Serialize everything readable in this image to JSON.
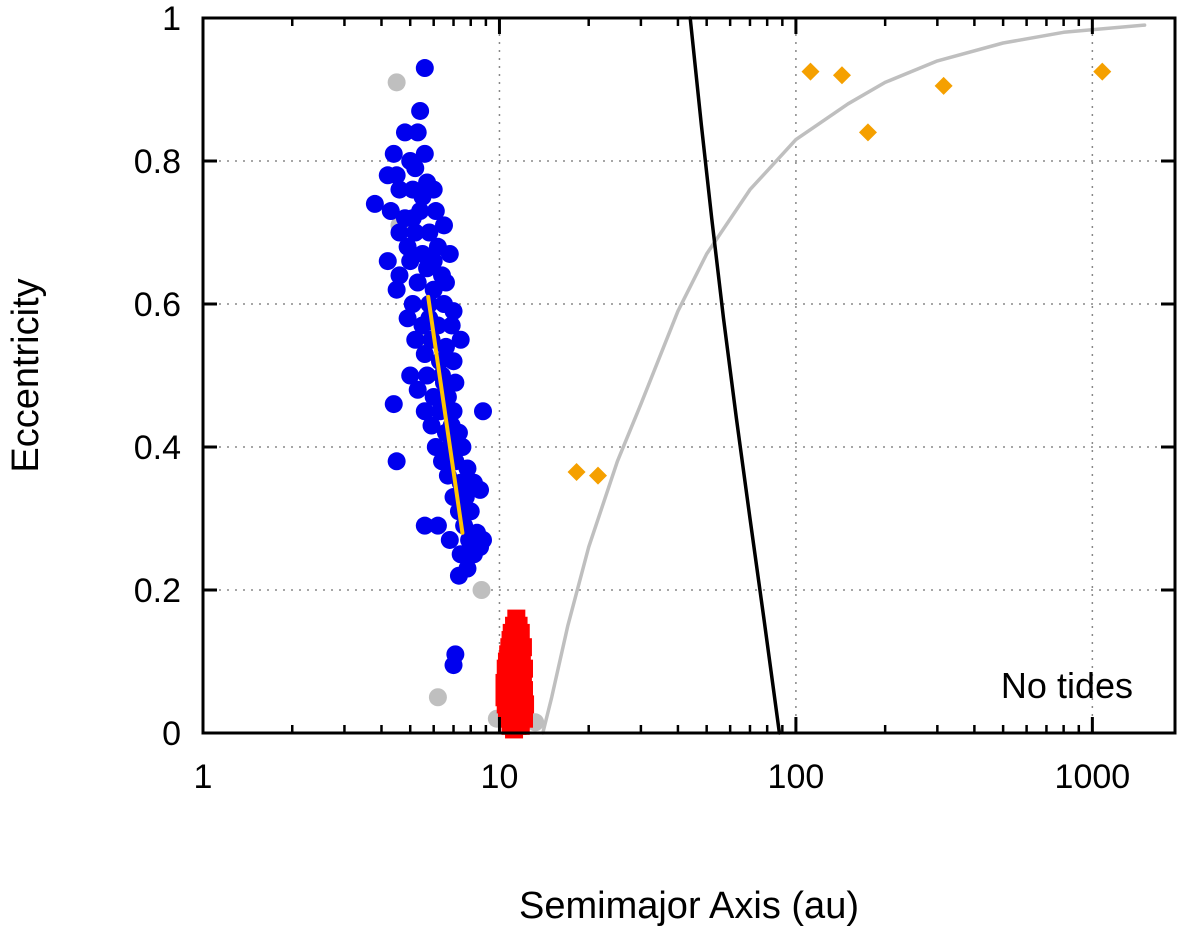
{
  "chart_data": {
    "type": "scatter",
    "title": "",
    "xlabel": "Semimajor Axis (au)",
    "ylabel": "Eccentricity",
    "xscale": "log",
    "xlim": [
      1,
      1900
    ],
    "ylim": [
      0,
      1
    ],
    "xticks": [
      {
        "value": 1,
        "label": "1"
      },
      {
        "value": 10,
        "label": "10"
      },
      {
        "value": 100,
        "label": "100"
      },
      {
        "value": 1000,
        "label": "1000"
      }
    ],
    "yticks": [
      {
        "value": 0,
        "label": "0"
      },
      {
        "value": 0.2,
        "label": "0.2"
      },
      {
        "value": 0.4,
        "label": "0.4"
      },
      {
        "value": 0.6,
        "label": "0.6"
      },
      {
        "value": 0.8,
        "label": "0.8"
      },
      {
        "value": 1,
        "label": "1"
      }
    ],
    "grid": true,
    "annotation": "No tides",
    "colors": {
      "blue": "#0000ee",
      "grey": "#bfbfbf",
      "red": "#ff0000",
      "orange": "#f5a000",
      "yellow": "#ffc400",
      "black": "#000000"
    },
    "series": [
      {
        "name": "grey-points",
        "marker": "circle",
        "color": "#bfbfbf",
        "points": [
          [
            4.5,
            0.91
          ],
          [
            4.6,
            0.71
          ],
          [
            5.3,
            0.55
          ],
          [
            6.2,
            0.05
          ],
          [
            9.8,
            0.02
          ],
          [
            13.2,
            0.015
          ],
          [
            8.7,
            0.2
          ]
        ]
      },
      {
        "name": "blue-points",
        "marker": "circle",
        "color": "#0000ee",
        "points": [
          [
            5.6,
            0.93
          ],
          [
            5.4,
            0.87
          ],
          [
            4.8,
            0.84
          ],
          [
            5.3,
            0.84
          ],
          [
            5.6,
            0.81
          ],
          [
            5.0,
            0.8
          ],
          [
            4.4,
            0.81
          ],
          [
            4.5,
            0.78
          ],
          [
            5.2,
            0.79
          ],
          [
            5.7,
            0.77
          ],
          [
            4.2,
            0.78
          ],
          [
            4.6,
            0.76
          ],
          [
            5.1,
            0.76
          ],
          [
            5.5,
            0.75
          ],
          [
            6.0,
            0.76
          ],
          [
            3.8,
            0.74
          ],
          [
            4.3,
            0.73
          ],
          [
            4.8,
            0.72
          ],
          [
            5.4,
            0.73
          ],
          [
            6.1,
            0.73
          ],
          [
            4.6,
            0.7
          ],
          [
            5.2,
            0.7
          ],
          [
            5.8,
            0.7
          ],
          [
            6.5,
            0.71
          ],
          [
            4.9,
            0.68
          ],
          [
            5.5,
            0.67
          ],
          [
            6.2,
            0.68
          ],
          [
            6.8,
            0.67
          ],
          [
            4.2,
            0.66
          ],
          [
            5.0,
            0.66
          ],
          [
            5.7,
            0.65
          ],
          [
            6.4,
            0.64
          ],
          [
            4.6,
            0.64
          ],
          [
            5.3,
            0.63
          ],
          [
            6.0,
            0.62
          ],
          [
            6.6,
            0.63
          ],
          [
            4.5,
            0.62
          ],
          [
            5.1,
            0.6
          ],
          [
            5.8,
            0.6
          ],
          [
            6.5,
            0.6
          ],
          [
            7.0,
            0.59
          ],
          [
            4.9,
            0.58
          ],
          [
            5.5,
            0.57
          ],
          [
            6.2,
            0.57
          ],
          [
            6.9,
            0.57
          ],
          [
            5.2,
            0.55
          ],
          [
            5.9,
            0.55
          ],
          [
            6.6,
            0.54
          ],
          [
            7.4,
            0.55
          ],
          [
            5.6,
            0.53
          ],
          [
            6.3,
            0.52
          ],
          [
            7.0,
            0.52
          ],
          [
            5.0,
            0.5
          ],
          [
            5.7,
            0.5
          ],
          [
            6.4,
            0.5
          ],
          [
            7.1,
            0.49
          ],
          [
            5.3,
            0.48
          ],
          [
            6.0,
            0.47
          ],
          [
            6.7,
            0.47
          ],
          [
            5.6,
            0.45
          ],
          [
            6.3,
            0.45
          ],
          [
            7.0,
            0.45
          ],
          [
            8.8,
            0.45
          ],
          [
            4.4,
            0.46
          ],
          [
            5.9,
            0.43
          ],
          [
            6.6,
            0.42
          ],
          [
            7.3,
            0.42
          ],
          [
            6.1,
            0.4
          ],
          [
            6.8,
            0.4
          ],
          [
            7.5,
            0.4
          ],
          [
            6.4,
            0.38
          ],
          [
            7.1,
            0.38
          ],
          [
            7.8,
            0.37
          ],
          [
            4.5,
            0.38
          ],
          [
            6.7,
            0.36
          ],
          [
            7.4,
            0.35
          ],
          [
            8.2,
            0.35
          ],
          [
            7.0,
            0.33
          ],
          [
            7.7,
            0.33
          ],
          [
            8.6,
            0.34
          ],
          [
            7.3,
            0.31
          ],
          [
            8.0,
            0.31
          ],
          [
            5.6,
            0.29
          ],
          [
            6.2,
            0.29
          ],
          [
            7.6,
            0.29
          ],
          [
            8.4,
            0.28
          ],
          [
            6.8,
            0.27
          ],
          [
            7.9,
            0.27
          ],
          [
            8.8,
            0.27
          ],
          [
            7.4,
            0.25
          ],
          [
            8.2,
            0.25
          ],
          [
            7.8,
            0.23
          ],
          [
            7.3,
            0.22
          ],
          [
            8.6,
            0.26
          ],
          [
            6.5,
            0.49
          ],
          [
            5.8,
            0.58
          ],
          [
            6.9,
            0.43
          ],
          [
            7.6,
            0.31
          ],
          [
            6.0,
            0.66
          ],
          [
            5.1,
            0.72
          ],
          [
            7.1,
            0.11
          ],
          [
            7.0,
            0.095
          ]
        ]
      },
      {
        "name": "red-points",
        "marker": "square",
        "color": "#ff0000",
        "points": [
          [
            11.4,
            0.16
          ],
          [
            11.2,
            0.15
          ],
          [
            11.6,
            0.15
          ],
          [
            11.0,
            0.14
          ],
          [
            11.4,
            0.14
          ],
          [
            11.8,
            0.14
          ],
          [
            10.9,
            0.13
          ],
          [
            11.3,
            0.13
          ],
          [
            11.7,
            0.13
          ],
          [
            12.0,
            0.12
          ],
          [
            10.8,
            0.12
          ],
          [
            11.2,
            0.12
          ],
          [
            11.6,
            0.11
          ],
          [
            10.7,
            0.11
          ],
          [
            11.1,
            0.11
          ],
          [
            11.9,
            0.11
          ],
          [
            10.6,
            0.1
          ],
          [
            11.0,
            0.1
          ],
          [
            11.4,
            0.1
          ],
          [
            11.8,
            0.1
          ],
          [
            12.1,
            0.09
          ],
          [
            10.5,
            0.09
          ],
          [
            10.9,
            0.09
          ],
          [
            11.3,
            0.09
          ],
          [
            11.7,
            0.08
          ],
          [
            10.6,
            0.08
          ],
          [
            11.0,
            0.08
          ],
          [
            12.0,
            0.08
          ],
          [
            10.4,
            0.07
          ],
          [
            10.8,
            0.07
          ],
          [
            11.2,
            0.07
          ],
          [
            11.6,
            0.07
          ],
          [
            12.1,
            0.06
          ],
          [
            10.5,
            0.06
          ],
          [
            10.9,
            0.06
          ],
          [
            11.3,
            0.06
          ],
          [
            11.8,
            0.05
          ],
          [
            10.4,
            0.05
          ],
          [
            10.8,
            0.05
          ],
          [
            11.2,
            0.05
          ],
          [
            12.2,
            0.04
          ],
          [
            10.5,
            0.04
          ],
          [
            11.0,
            0.04
          ],
          [
            11.5,
            0.04
          ],
          [
            11.9,
            0.03
          ],
          [
            10.6,
            0.03
          ],
          [
            11.1,
            0.03
          ],
          [
            11.6,
            0.02
          ],
          [
            10.7,
            0.02
          ],
          [
            11.3,
            0.02
          ],
          [
            12.1,
            0.02
          ],
          [
            10.9,
            0.01
          ],
          [
            11.5,
            0.01
          ],
          [
            11.2,
            0.005
          ],
          [
            11.8,
            0.01
          ]
        ]
      },
      {
        "name": "orange-points",
        "marker": "diamond",
        "color": "#f5a000",
        "points": [
          [
            18.2,
            0.365
          ],
          [
            21.5,
            0.36
          ],
          [
            112,
            0.925
          ],
          [
            143,
            0.92
          ],
          [
            175,
            0.84
          ],
          [
            315,
            0.905
          ],
          [
            1080,
            0.925
          ]
        ]
      },
      {
        "name": "yellow-line",
        "type": "line",
        "color": "#ffc400",
        "points": [
          [
            5.75,
            0.61
          ],
          [
            7.5,
            0.28
          ]
        ]
      },
      {
        "name": "grey-curve",
        "type": "line",
        "color": "#bfbfbf",
        "points": [
          [
            14,
            0
          ],
          [
            15,
            0.05
          ],
          [
            17,
            0.15
          ],
          [
            20,
            0.26
          ],
          [
            25,
            0.38
          ],
          [
            30,
            0.46
          ],
          [
            40,
            0.59
          ],
          [
            50,
            0.67
          ],
          [
            70,
            0.76
          ],
          [
            100,
            0.83
          ],
          [
            150,
            0.88
          ],
          [
            200,
            0.91
          ],
          [
            300,
            0.94
          ],
          [
            500,
            0.965
          ],
          [
            800,
            0.98
          ],
          [
            1500,
            0.99
          ]
        ]
      },
      {
        "name": "black-curve",
        "type": "line",
        "color": "#000000",
        "points": [
          [
            44,
            1
          ],
          [
            48,
            0.85
          ],
          [
            52,
            0.72
          ],
          [
            57,
            0.58
          ],
          [
            63,
            0.44
          ],
          [
            70,
            0.3
          ],
          [
            78,
            0.16
          ],
          [
            88,
            0
          ]
        ]
      }
    ]
  }
}
